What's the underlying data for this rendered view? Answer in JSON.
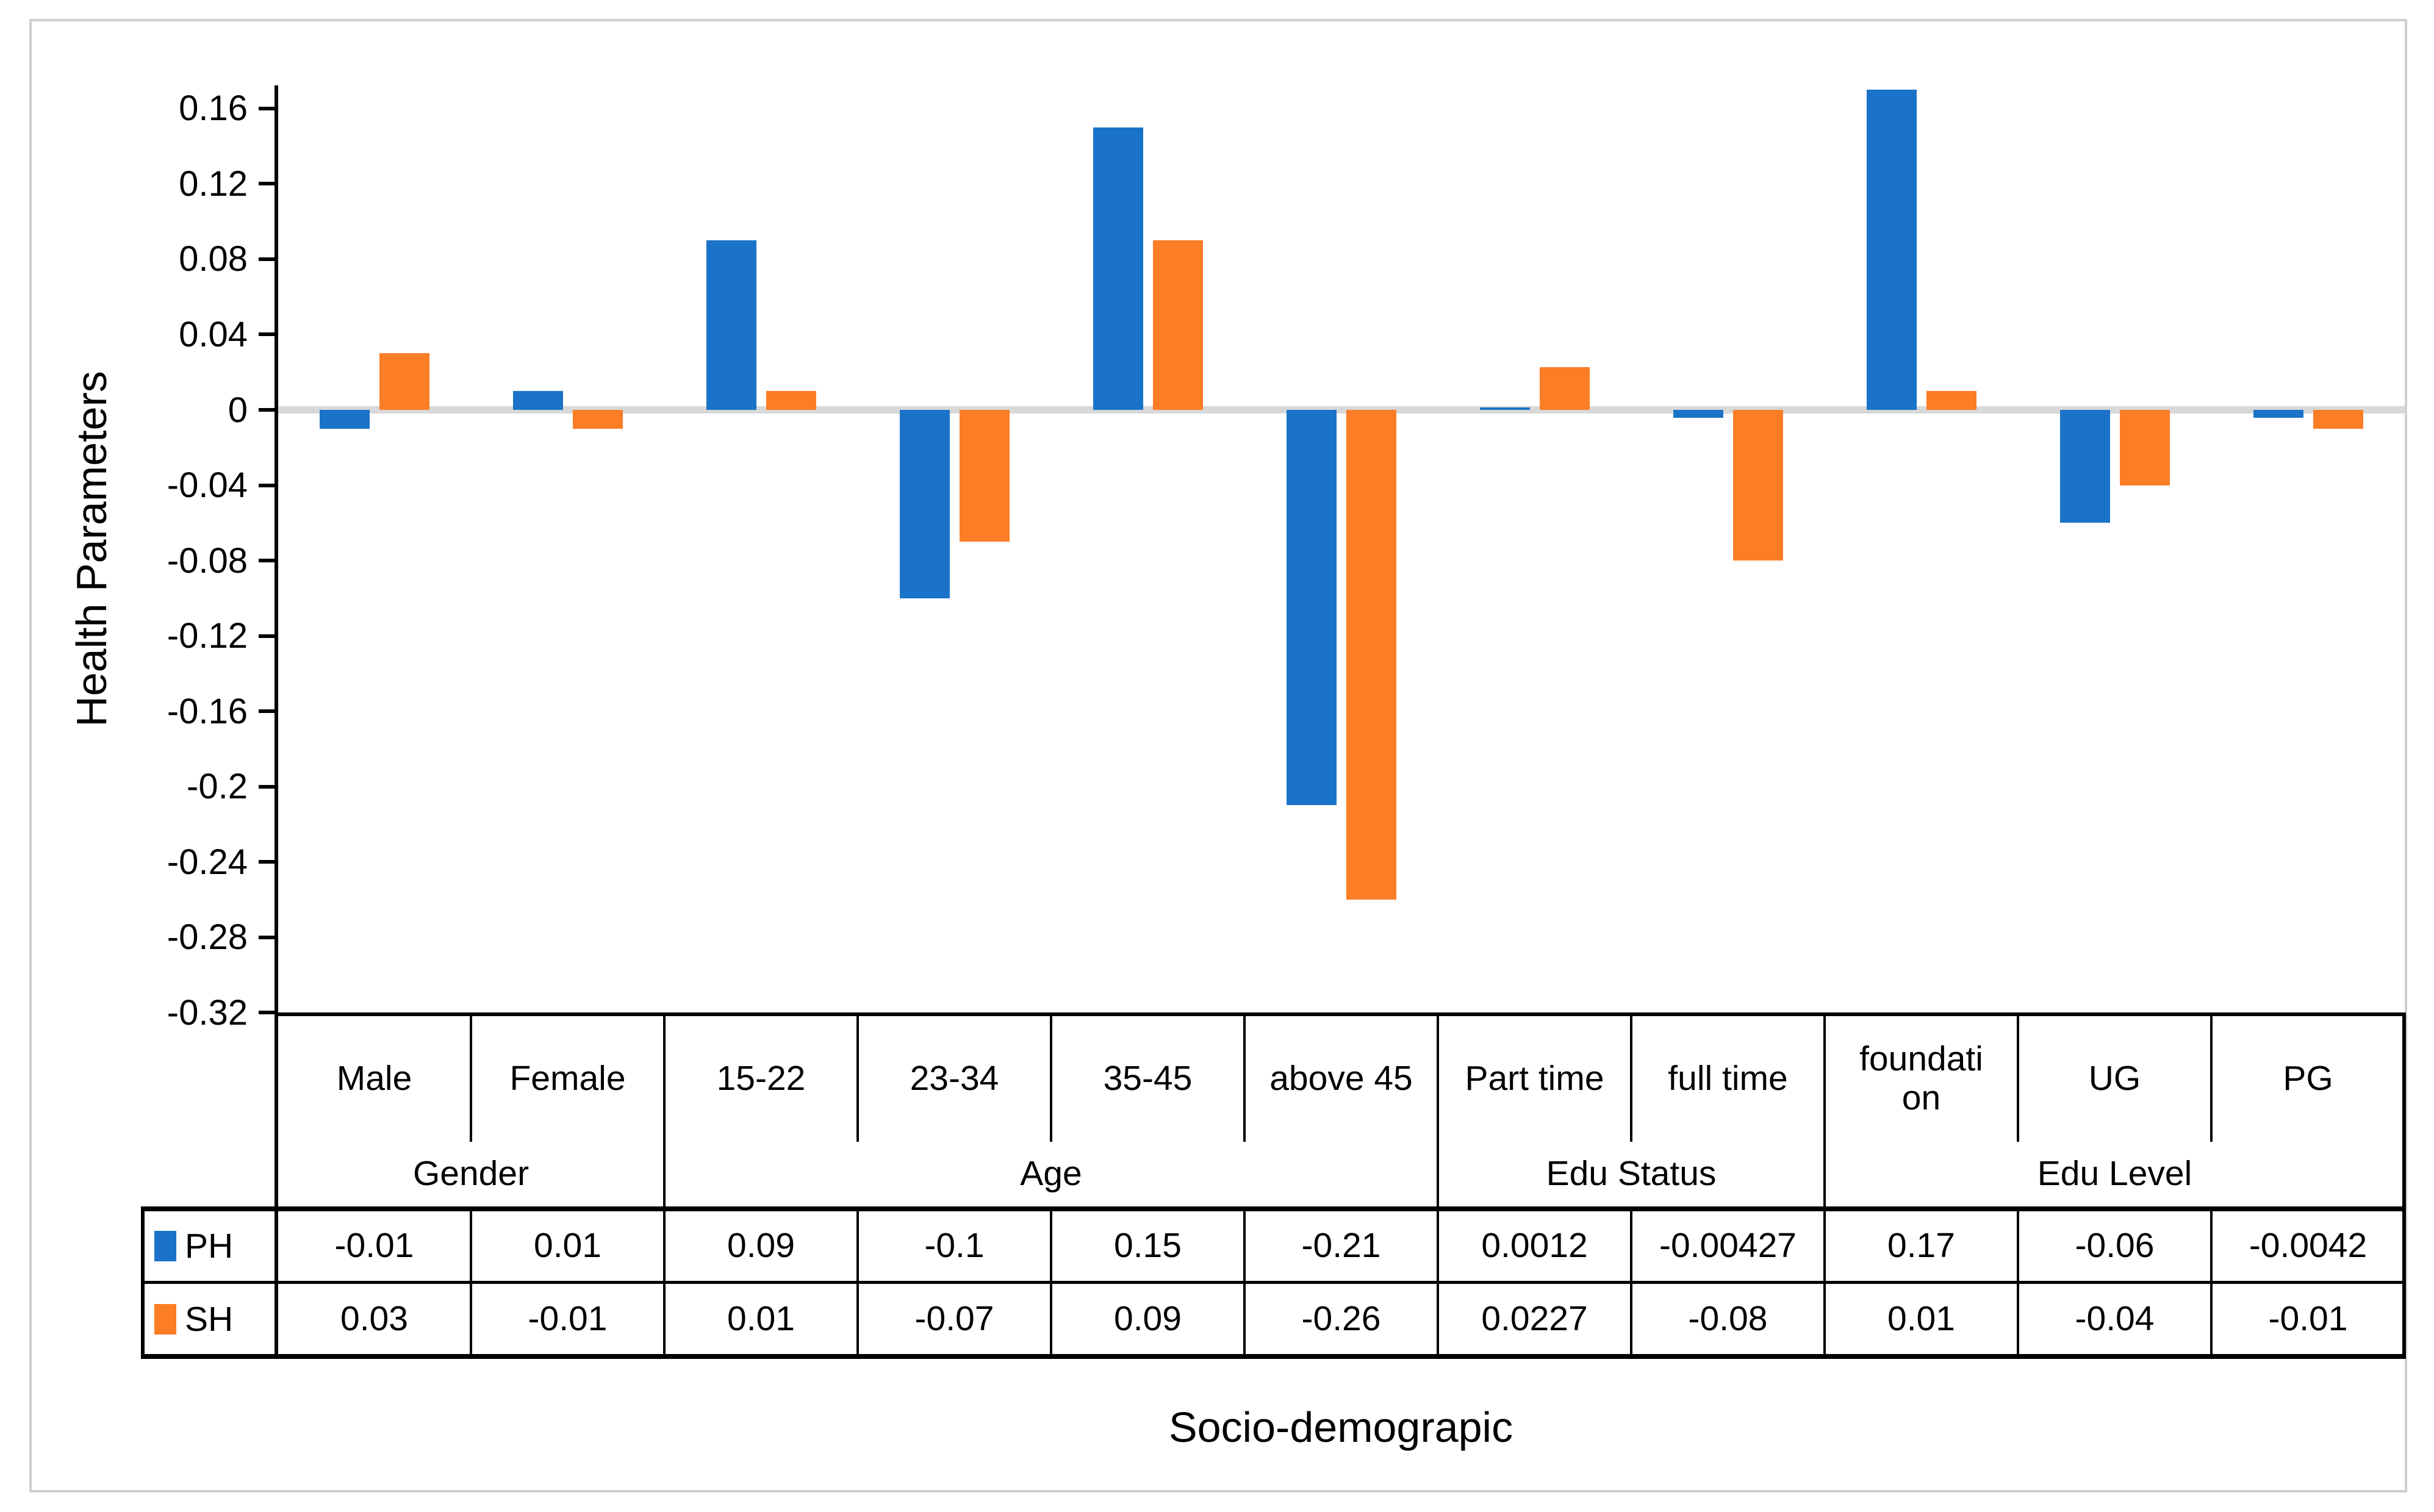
{
  "figure": {
    "background": "#FFFFFF",
    "border_color": "#CFCFCF"
  },
  "chart": {
    "y_axis_title": "Health Parameters",
    "x_axis_title": "Socio-demograpic"
  },
  "chart_data": {
    "type": "bar",
    "title": "",
    "xlabel": "Socio-demograpic",
    "ylabel": "Health Parameters",
    "categories": [
      "Male",
      "Female",
      "15-22",
      "23-34",
      "35-45",
      "above 45",
      "Part time",
      "full time",
      "foundation",
      "UG",
      "PG"
    ],
    "categories_display": [
      "Male",
      "Female",
      "15-22",
      "23-34",
      "35-45",
      "above 45",
      "Part time",
      "full time",
      "foundati\non",
      "UG",
      "PG"
    ],
    "groups": [
      {
        "label": "Gender",
        "span": 2
      },
      {
        "label": "Age",
        "span": 4
      },
      {
        "label": "Edu Status",
        "span": 2
      },
      {
        "label": "Edu Level",
        "span": 3
      }
    ],
    "series": [
      {
        "name": "PH",
        "color": "#1A73C8",
        "values": [
          -0.01,
          0.01,
          0.09,
          -0.1,
          0.15,
          -0.21,
          0.0012,
          -0.00427,
          0.17,
          -0.06,
          -0.0042
        ]
      },
      {
        "name": "SH",
        "color": "#FB7D26",
        "values": [
          0.03,
          -0.01,
          0.01,
          -0.07,
          0.09,
          -0.26,
          0.0227,
          -0.08,
          0.01,
          -0.04,
          -0.01
        ]
      }
    ],
    "y_ticks": [
      0.16,
      0.12,
      0.08,
      0.04,
      0,
      -0.04,
      -0.08,
      -0.12,
      -0.16,
      -0.2,
      -0.24,
      -0.28,
      -0.32
    ],
    "y_tick_labels": [
      "0.16",
      "0.12",
      "0.08",
      "0.04",
      "0",
      "-0.04",
      "-0.08",
      "-0.12",
      "-0.16",
      "-0.2",
      "-0.24",
      "-0.28",
      "-0.32"
    ],
    "ylim": [
      -0.32,
      0.172
    ],
    "grid": "zero-line-only",
    "legend_position": "table-left-of-rows",
    "colors": {
      "ph_blue": "#1A73C8",
      "sh_orange": "#FB7D26",
      "zero_line": "#D8D8D8",
      "axis": "#000000",
      "table_border": "#000000"
    }
  }
}
